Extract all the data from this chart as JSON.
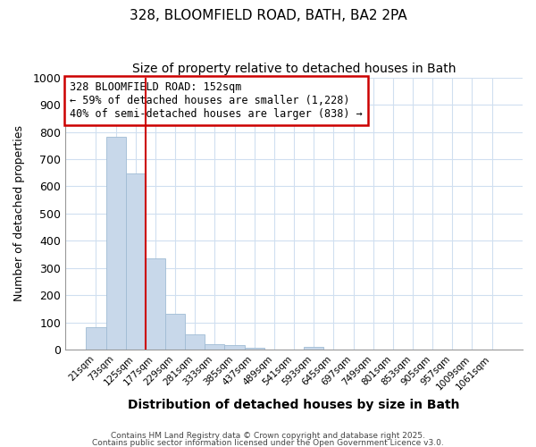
{
  "title_line1": "328, BLOOMFIELD ROAD, BATH, BA2 2PA",
  "title_line2": "Size of property relative to detached houses in Bath",
  "xlabel": "Distribution of detached houses by size in Bath",
  "ylabel": "Number of detached properties",
  "bar_color": "#c8d8ea",
  "bar_edgecolor": "#a0bcd4",
  "background_color": "#ffffff",
  "grid_color": "#d0dff0",
  "categories": [
    "21sqm",
    "73sqm",
    "125sqm",
    "177sqm",
    "229sqm",
    "281sqm",
    "333sqm",
    "385sqm",
    "437sqm",
    "489sqm",
    "541sqm",
    "593sqm",
    "645sqm",
    "697sqm",
    "749sqm",
    "801sqm",
    "853sqm",
    "905sqm",
    "957sqm",
    "1009sqm",
    "1061sqm"
  ],
  "values": [
    84,
    782,
    648,
    335,
    133,
    58,
    22,
    17,
    9,
    0,
    0,
    10,
    0,
    0,
    0,
    0,
    0,
    0,
    0,
    0,
    0
  ],
  "ylim": [
    0,
    1000
  ],
  "yticks": [
    0,
    100,
    200,
    300,
    400,
    500,
    600,
    700,
    800,
    900,
    1000
  ],
  "annotation_title": "328 BLOOMFIELD ROAD: 152sqm",
  "annotation_line1": "← 59% of detached houses are smaller (1,228)",
  "annotation_line2": "40% of semi-detached houses are larger (838) →",
  "annotation_box_facecolor": "#ffffff",
  "annotation_box_edgecolor": "#cc0000",
  "red_line_color": "#cc0000",
  "footer_line1": "Contains HM Land Registry data © Crown copyright and database right 2025.",
  "footer_line2": "Contains public sector information licensed under the Open Government Licence v3.0."
}
